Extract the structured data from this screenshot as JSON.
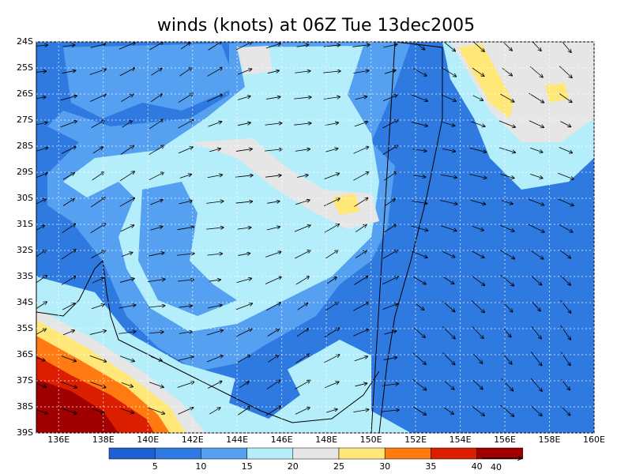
{
  "title": "winds (knots) at 06Z Tue 13dec2005",
  "map": {
    "xlim": [
      135,
      160
    ],
    "ylim": [
      -39,
      -24
    ],
    "xticks": [
      {
        "value": 136,
        "label": "136E"
      },
      {
        "value": 138,
        "label": "138E"
      },
      {
        "value": 140,
        "label": "140E"
      },
      {
        "value": 142,
        "label": "142E"
      },
      {
        "value": 144,
        "label": "144E"
      },
      {
        "value": 146,
        "label": "146E"
      },
      {
        "value": 148,
        "label": "148E"
      },
      {
        "value": 150,
        "label": "150E"
      },
      {
        "value": 152,
        "label": "152E"
      },
      {
        "value": 154,
        "label": "154E"
      },
      {
        "value": 156,
        "label": "156E"
      },
      {
        "value": 158,
        "label": "158E"
      },
      {
        "value": 160,
        "label": "160E"
      }
    ],
    "yticks": [
      {
        "value": -24,
        "label": "24S"
      },
      {
        "value": -25,
        "label": "25S"
      },
      {
        "value": -26,
        "label": "26S"
      },
      {
        "value": -27,
        "label": "27S"
      },
      {
        "value": -28,
        "label": "28S"
      },
      {
        "value": -29,
        "label": "29S"
      },
      {
        "value": -30,
        "label": "30S"
      },
      {
        "value": -31,
        "label": "31S"
      },
      {
        "value": -32,
        "label": "32S"
      },
      {
        "value": -33,
        "label": "33S"
      },
      {
        "value": -34,
        "label": "34S"
      },
      {
        "value": -35,
        "label": "35S"
      },
      {
        "value": -36,
        "label": "36S"
      },
      {
        "value": -37,
        "label": "37S"
      },
      {
        "value": -38,
        "label": "38S"
      },
      {
        "value": -39,
        "label": "39S"
      }
    ]
  },
  "colorbar": {
    "levels": [
      5,
      10,
      15,
      20,
      25,
      30,
      35,
      40
    ],
    "colors": [
      "#1e5fd2",
      "#2f7ae0",
      "#55a0f0",
      "#b4eefa",
      "#e6e6e6",
      "#ffe878",
      "#ff7a10",
      "#dc1e00",
      "#a00000"
    ]
  },
  "reference_vector": {
    "value": 40,
    "label": "40"
  }
}
